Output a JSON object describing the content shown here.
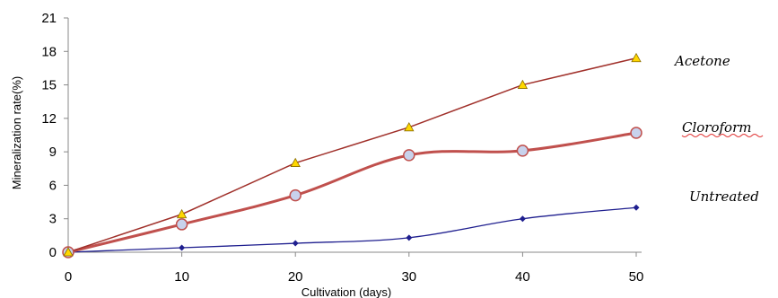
{
  "chart_data": {
    "type": "line",
    "xlabel": "Cultivation (days)",
    "ylabel": "Mineralization rate(%)",
    "xlim": [
      0,
      50
    ],
    "ylim": [
      0,
      21
    ],
    "x_ticks": [
      "0",
      "10",
      "20",
      "30",
      "40",
      "50"
    ],
    "y_ticks": [
      "0",
      "3",
      "6",
      "9",
      "12",
      "15",
      "18",
      "21"
    ],
    "grid": false,
    "legend": "direct labels at line ends (right)",
    "x": [
      0,
      10,
      20,
      30,
      40,
      50
    ],
    "series": [
      {
        "name": "Acetone",
        "values": [
          0,
          3.4,
          8.0,
          11.2,
          15.0,
          17.4
        ],
        "color": "#a0302a",
        "marker": "triangle",
        "marker_color": "#ffd700",
        "smooth": false
      },
      {
        "name": "Cloroform",
        "values": [
          0,
          2.5,
          5.1,
          8.7,
          9.1,
          10.7
        ],
        "color": "#c0504d",
        "marker": "circle",
        "marker_color": "#c8d2ec",
        "smooth": true
      },
      {
        "name": "Untreated",
        "values": [
          0,
          0.4,
          0.8,
          1.3,
          3.0,
          4.0
        ],
        "color": "#1f1f8f",
        "marker": "diamond",
        "marker_color": "#1f1f8f",
        "smooth": true
      }
    ]
  }
}
